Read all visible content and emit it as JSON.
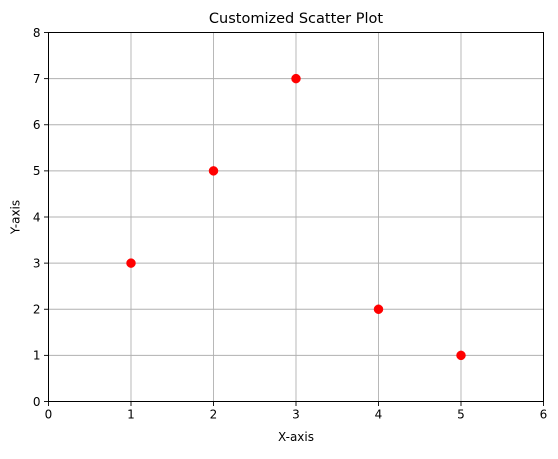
{
  "chart_data": {
    "type": "scatter",
    "title": "Customized Scatter Plot",
    "xlabel": "X-axis",
    "ylabel": "Y-axis",
    "xlim": [
      0,
      6
    ],
    "ylim": [
      0,
      8
    ],
    "xticks": [
      0,
      1,
      2,
      3,
      4,
      5,
      6
    ],
    "yticks": [
      0,
      1,
      2,
      3,
      4,
      5,
      6,
      7,
      8
    ],
    "grid": true,
    "series": [
      {
        "color": "#ff0000",
        "points": [
          {
            "x": 1,
            "y": 3
          },
          {
            "x": 2,
            "y": 5
          },
          {
            "x": 3,
            "y": 7
          },
          {
            "x": 4,
            "y": 2
          },
          {
            "x": 5,
            "y": 1
          }
        ]
      }
    ],
    "colors": {
      "grid": "#b0b0b0",
      "axes": "#000000"
    }
  }
}
